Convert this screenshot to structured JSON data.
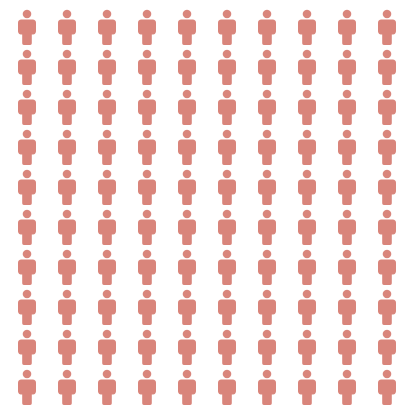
{
  "chart_data": {
    "type": "pictogram",
    "rows": 10,
    "columns": 10,
    "total_units": 100,
    "filled_units": 100,
    "unit_icon": "person-icon",
    "unit_color": "#d9857b",
    "background_color": "#ffffff",
    "title": "",
    "legend": "none",
    "grid": false
  }
}
